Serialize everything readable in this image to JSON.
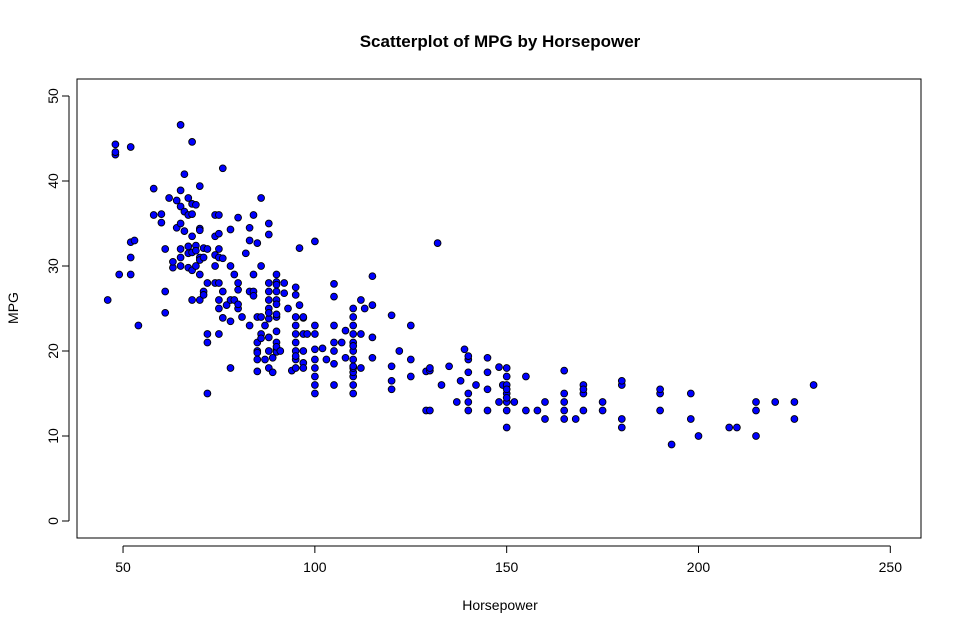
{
  "chart_data": {
    "type": "scatter",
    "title": "Scatterplot of MPG by Horsepower",
    "xlabel": "Horsepower",
    "ylabel": "MPG",
    "xlim": [
      38,
      258
    ],
    "ylim": [
      -2,
      52
    ],
    "xticks": [
      50,
      100,
      150,
      200,
      250
    ],
    "yticks": [
      0,
      10,
      20,
      30,
      40,
      50
    ],
    "grid": false,
    "legend": "none",
    "colors": {
      "point_fill": "#0000ff",
      "point_stroke": "#000000",
      "frame": "#000000"
    },
    "series": [
      {
        "points": [
          [
            46,
            26
          ],
          [
            48,
            43.1
          ],
          [
            48,
            43.4
          ],
          [
            48,
            44.3
          ],
          [
            49,
            29
          ],
          [
            52,
            44
          ],
          [
            52,
            31
          ],
          [
            52,
            29
          ],
          [
            52,
            32.8
          ],
          [
            53,
            33
          ],
          [
            54,
            23
          ],
          [
            58,
            39.1
          ],
          [
            58,
            36
          ],
          [
            60,
            35.1
          ],
          [
            60,
            36.1
          ],
          [
            61,
            24.5
          ],
          [
            61,
            27
          ],
          [
            61,
            32
          ],
          [
            62,
            38
          ],
          [
            63,
            29.8
          ],
          [
            63,
            30.5
          ],
          [
            64,
            37.7
          ],
          [
            64,
            34.5
          ],
          [
            65,
            32
          ],
          [
            65,
            35
          ],
          [
            65,
            37
          ],
          [
            65,
            38.9
          ],
          [
            65,
            30
          ],
          [
            65,
            31
          ],
          [
            65,
            46.6
          ],
          [
            66,
            40.8
          ],
          [
            66,
            34.1
          ],
          [
            66,
            36.4
          ],
          [
            67,
            38
          ],
          [
            67,
            32.3
          ],
          [
            67,
            31.5
          ],
          [
            67,
            36
          ],
          [
            67,
            29.8
          ],
          [
            68,
            37.3
          ],
          [
            68,
            31.6
          ],
          [
            68,
            26
          ],
          [
            68,
            44.6
          ],
          [
            68,
            29.5
          ],
          [
            68,
            33.5
          ],
          [
            68,
            36.1
          ],
          [
            69,
            32.4
          ],
          [
            69,
            31.8
          ],
          [
            69,
            37.2
          ],
          [
            69,
            30
          ],
          [
            70,
            29
          ],
          [
            70,
            34.4
          ],
          [
            70,
            31
          ],
          [
            70,
            34.2
          ],
          [
            70,
            39.4
          ],
          [
            70,
            26
          ],
          [
            70,
            30.7
          ],
          [
            71,
            32.1
          ],
          [
            71,
            31
          ],
          [
            71,
            27
          ],
          [
            71,
            26.6
          ],
          [
            72,
            32
          ],
          [
            72,
            22
          ],
          [
            72,
            21
          ],
          [
            72,
            15
          ],
          [
            72,
            28
          ],
          [
            74,
            30
          ],
          [
            74,
            31.3
          ],
          [
            74,
            33.5
          ],
          [
            74,
            36
          ],
          [
            74,
            28
          ],
          [
            75,
            32
          ],
          [
            75,
            33.8
          ],
          [
            75,
            31
          ],
          [
            75,
            22
          ],
          [
            75,
            25
          ],
          [
            75,
            28
          ],
          [
            75,
            26
          ],
          [
            75,
            36
          ],
          [
            76,
            41.5
          ],
          [
            76,
            27
          ],
          [
            76,
            30.9
          ],
          [
            76,
            23.9
          ],
          [
            77,
            25.4
          ],
          [
            78,
            34.3
          ],
          [
            78,
            30
          ],
          [
            78,
            18
          ],
          [
            78,
            26
          ],
          [
            78,
            23.5
          ],
          [
            79,
            29
          ],
          [
            79,
            26
          ],
          [
            80,
            35.7
          ],
          [
            80,
            27.2
          ],
          [
            80,
            28
          ],
          [
            80,
            25
          ],
          [
            80,
            25.5
          ],
          [
            81,
            24
          ],
          [
            82,
            31.5
          ],
          [
            83,
            34.5
          ],
          [
            83,
            23
          ],
          [
            83,
            27
          ],
          [
            83,
            33
          ],
          [
            84,
            29
          ],
          [
            84,
            36
          ],
          [
            84,
            27
          ],
          [
            84,
            26.5
          ],
          [
            85,
            17.6
          ],
          [
            85,
            19
          ],
          [
            85,
            20
          ],
          [
            85,
            32.7
          ],
          [
            85,
            24
          ],
          [
            85,
            19.8
          ],
          [
            85,
            21
          ],
          [
            86,
            38
          ],
          [
            86,
            22
          ],
          [
            86,
            30
          ],
          [
            86,
            24
          ],
          [
            86,
            21.5
          ],
          [
            87,
            23
          ],
          [
            87,
            19
          ],
          [
            88,
            20
          ],
          [
            88,
            26
          ],
          [
            88,
            27
          ],
          [
            88,
            25
          ],
          [
            88,
            21.6
          ],
          [
            88,
            23.8
          ],
          [
            88,
            18
          ],
          [
            88,
            35
          ],
          [
            88,
            33.7
          ],
          [
            88,
            28
          ],
          [
            88,
            24.5
          ],
          [
            89,
            17.5
          ],
          [
            89,
            19.2
          ],
          [
            90,
            20.2
          ],
          [
            90,
            24
          ],
          [
            90,
            26
          ],
          [
            90,
            29
          ],
          [
            90,
            28.1
          ],
          [
            90,
            19.9
          ],
          [
            90,
            22.3
          ],
          [
            90,
            27
          ],
          [
            90,
            21
          ],
          [
            90,
            25.5
          ],
          [
            90,
            27.8
          ],
          [
            90,
            20.5
          ],
          [
            90,
            24.3
          ],
          [
            91,
            20
          ],
          [
            92,
            28
          ],
          [
            92,
            26.8
          ],
          [
            93,
            25
          ],
          [
            94,
            17.7
          ],
          [
            95,
            19
          ],
          [
            95,
            20
          ],
          [
            95,
            22
          ],
          [
            95,
            24
          ],
          [
            95,
            23
          ],
          [
            95,
            27.5
          ],
          [
            95,
            18
          ],
          [
            95,
            21
          ],
          [
            95,
            26.6
          ],
          [
            95,
            19.4
          ],
          [
            96,
            25.4
          ],
          [
            96,
            32.1
          ],
          [
            97,
            22
          ],
          [
            97,
            23.9
          ],
          [
            97,
            20
          ],
          [
            97,
            24
          ],
          [
            97,
            18.6
          ],
          [
            97,
            18
          ],
          [
            98,
            22
          ],
          [
            100,
            20.2
          ],
          [
            100,
            32.9
          ],
          [
            100,
            23
          ],
          [
            100,
            18
          ],
          [
            100,
            15
          ],
          [
            100,
            17
          ],
          [
            100,
            19
          ],
          [
            100,
            16
          ],
          [
            100,
            22
          ],
          [
            102,
            20.3
          ],
          [
            103,
            19
          ],
          [
            105,
            21
          ],
          [
            105,
            20
          ],
          [
            105,
            18.5
          ],
          [
            105,
            23
          ],
          [
            105,
            26.4
          ],
          [
            105,
            16
          ],
          [
            105,
            27.9
          ],
          [
            107,
            21
          ],
          [
            108,
            19.2
          ],
          [
            108,
            22.4
          ],
          [
            110,
            15
          ],
          [
            110,
            16
          ],
          [
            110,
            17
          ],
          [
            110,
            17.5
          ],
          [
            110,
            18
          ],
          [
            110,
            19
          ],
          [
            110,
            20
          ],
          [
            110,
            21
          ],
          [
            110,
            22
          ],
          [
            110,
            23
          ],
          [
            110,
            24
          ],
          [
            110,
            25
          ],
          [
            110,
            20.6
          ],
          [
            110,
            18.2
          ],
          [
            112,
            18
          ],
          [
            112,
            22
          ],
          [
            112,
            26
          ],
          [
            113,
            25
          ],
          [
            115,
            28.8
          ],
          [
            115,
            21.6
          ],
          [
            115,
            25.4
          ],
          [
            115,
            19.2
          ],
          [
            120,
            15.5
          ],
          [
            120,
            16.5
          ],
          [
            120,
            18.2
          ],
          [
            120,
            24.2
          ],
          [
            122,
            20
          ],
          [
            125,
            23
          ],
          [
            125,
            19
          ],
          [
            125,
            17
          ],
          [
            129,
            13
          ],
          [
            129,
            17.6
          ],
          [
            130,
            13
          ],
          [
            130,
            17.7
          ],
          [
            130,
            18
          ],
          [
            132,
            32.7
          ],
          [
            133,
            16
          ],
          [
            135,
            18.2
          ],
          [
            137,
            14
          ],
          [
            138,
            16.5
          ],
          [
            139,
            20.2
          ],
          [
            140,
            19
          ],
          [
            140,
            15
          ],
          [
            140,
            13
          ],
          [
            140,
            14
          ],
          [
            140,
            17.5
          ],
          [
            140,
            19.4
          ],
          [
            142,
            16
          ],
          [
            145,
            15.5
          ],
          [
            145,
            13
          ],
          [
            145,
            17.5
          ],
          [
            145,
            19.2
          ],
          [
            148,
            14
          ],
          [
            148,
            18.1
          ],
          [
            149,
            16
          ],
          [
            150,
            11
          ],
          [
            150,
            13
          ],
          [
            150,
            14
          ],
          [
            150,
            15
          ],
          [
            150,
            16
          ],
          [
            150,
            17
          ],
          [
            150,
            18
          ],
          [
            150,
            14.5
          ],
          [
            150,
            15.5
          ],
          [
            152,
            14
          ],
          [
            155,
            13
          ],
          [
            155,
            17
          ],
          [
            158,
            13
          ],
          [
            160,
            12
          ],
          [
            160,
            14
          ],
          [
            165,
            12
          ],
          [
            165,
            13
          ],
          [
            165,
            14
          ],
          [
            165,
            15
          ],
          [
            165,
            17.7
          ],
          [
            168,
            12
          ],
          [
            170,
            13
          ],
          [
            170,
            15
          ],
          [
            170,
            16
          ],
          [
            170,
            15.5
          ],
          [
            175,
            13
          ],
          [
            175,
            14
          ],
          [
            180,
            11
          ],
          [
            180,
            12
          ],
          [
            180,
            16
          ],
          [
            180,
            16.5
          ],
          [
            190,
            13
          ],
          [
            190,
            15
          ],
          [
            190,
            15.5
          ],
          [
            193,
            9
          ],
          [
            198,
            12
          ],
          [
            198,
            15
          ],
          [
            200,
            10
          ],
          [
            208,
            11
          ],
          [
            210,
            11
          ],
          [
            215,
            10
          ],
          [
            215,
            13
          ],
          [
            215,
            14
          ],
          [
            220,
            14
          ],
          [
            225,
            12
          ],
          [
            225,
            14
          ],
          [
            230,
            16
          ]
        ]
      }
    ]
  }
}
